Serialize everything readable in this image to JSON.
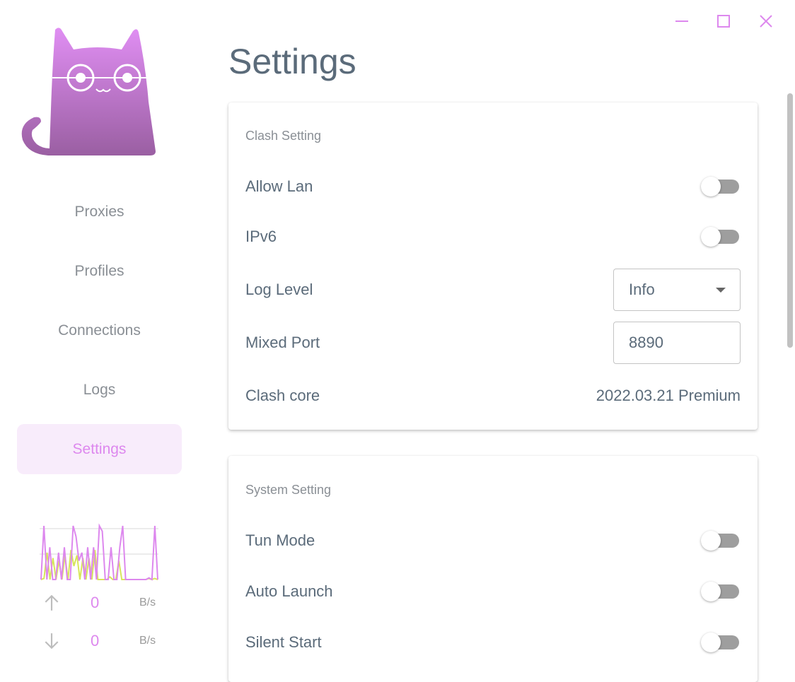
{
  "window": {
    "controls": [
      "minimize-icon",
      "maximize-icon",
      "close-icon"
    ],
    "accent": "#dd88ee"
  },
  "sidebar": {
    "items": [
      {
        "label": "Proxies"
      },
      {
        "label": "Profiles"
      },
      {
        "label": "Connections"
      },
      {
        "label": "Logs"
      },
      {
        "label": "Settings",
        "active": true
      }
    ],
    "traffic": {
      "upload": {
        "value": "0",
        "unit": "B/s"
      },
      "download": {
        "value": "0",
        "unit": "B/s"
      },
      "upload_series": [
        0,
        2,
        50,
        0,
        40,
        0,
        35,
        0,
        45,
        0,
        55,
        25,
        45,
        0,
        40,
        0,
        40,
        0,
        55,
        0,
        0,
        0,
        0,
        5,
        0,
        0,
        35,
        0,
        0,
        0,
        0,
        0,
        0,
        0,
        0,
        0,
        2,
        0,
        2,
        0
      ],
      "download_series": [
        0,
        100,
        0,
        60,
        0,
        0,
        50,
        0,
        60,
        0,
        0,
        100,
        80,
        35,
        50,
        0,
        60,
        0,
        60,
        0,
        100,
        90,
        0,
        0,
        60,
        0,
        0,
        60,
        100,
        0,
        0,
        0,
        0,
        0,
        0,
        0,
        0,
        3,
        0,
        100,
        0
      ],
      "colors": {
        "upload": "#d7e65a",
        "download": "#dd88ee"
      }
    }
  },
  "main": {
    "title": "Settings",
    "cards": [
      {
        "title": "Clash Setting",
        "rows": [
          {
            "label": "Allow Lan",
            "type": "toggle",
            "on": false
          },
          {
            "label": "IPv6",
            "type": "toggle",
            "on": false
          },
          {
            "label": "Log Level",
            "type": "select",
            "value": "Info"
          },
          {
            "label": "Mixed Port",
            "type": "input",
            "value": "8890"
          },
          {
            "label": "Clash core",
            "type": "text",
            "value": "2022.03.21 Premium"
          }
        ]
      },
      {
        "title": "System Setting",
        "rows": [
          {
            "label": "Tun Mode",
            "type": "toggle",
            "on": false
          },
          {
            "label": "Auto Launch",
            "type": "toggle",
            "on": false
          },
          {
            "label": "Silent Start",
            "type": "toggle",
            "on": false
          }
        ]
      }
    ]
  }
}
